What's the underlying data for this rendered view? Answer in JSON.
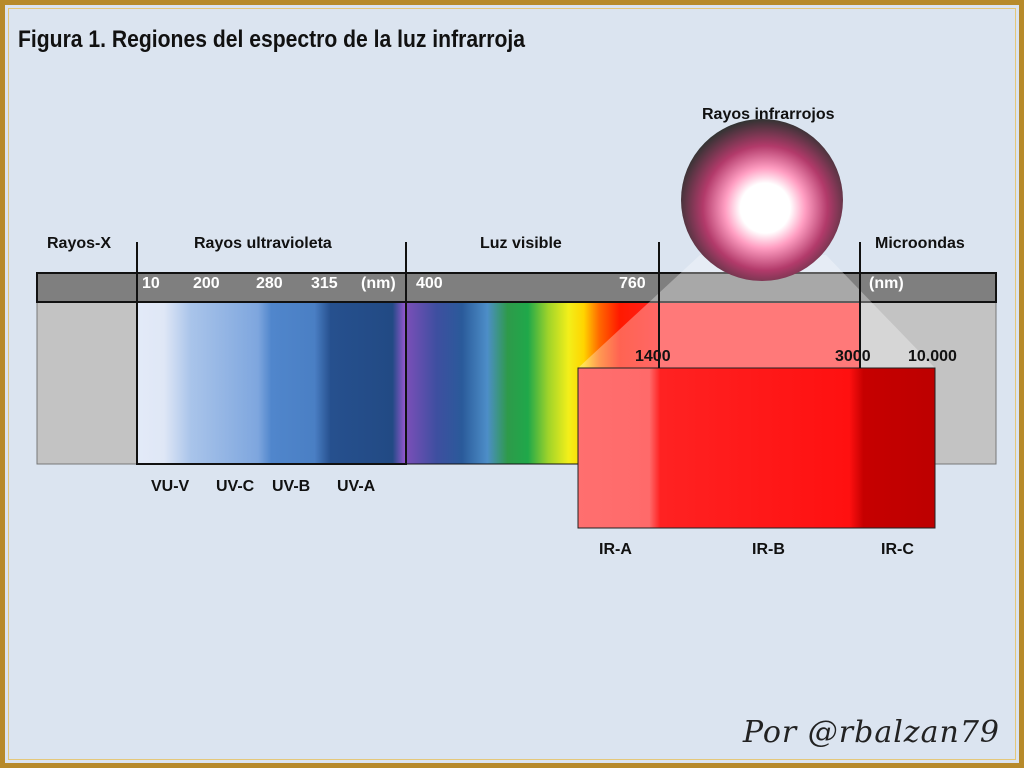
{
  "title": "Figura 1. Regiones del espectro de la luz infrarroja",
  "regions": {
    "xray": "Rayos-X",
    "uv": "Rayos ultravioleta",
    "visible": "Luz visible",
    "microwave": "Microondas",
    "infrared": "Rayos infrarrojos"
  },
  "wavelengths_top": {
    "w10": "10",
    "w200": "200",
    "w280": "280",
    "w315": "315",
    "unit_left": "(nm)",
    "w400": "400",
    "w760": "760",
    "unit_right": "(nm)"
  },
  "wavelengths_ir": {
    "w1400": "1400",
    "w3000": "3000",
    "w10000": "10.000"
  },
  "uv_bands": [
    "VU-V",
    "UV-C",
    "UV-B",
    "UV-A"
  ],
  "ir_bands": [
    "IR-A",
    "IR-B",
    "IR-C"
  ],
  "signature": "Por @rbalzan79",
  "colors": {
    "frame": "#b78a2a",
    "background": "#dbe4f0",
    "ir_a": "#ff6b6b",
    "ir_b": "#ff1414",
    "ir_c": "#c40000"
  }
}
